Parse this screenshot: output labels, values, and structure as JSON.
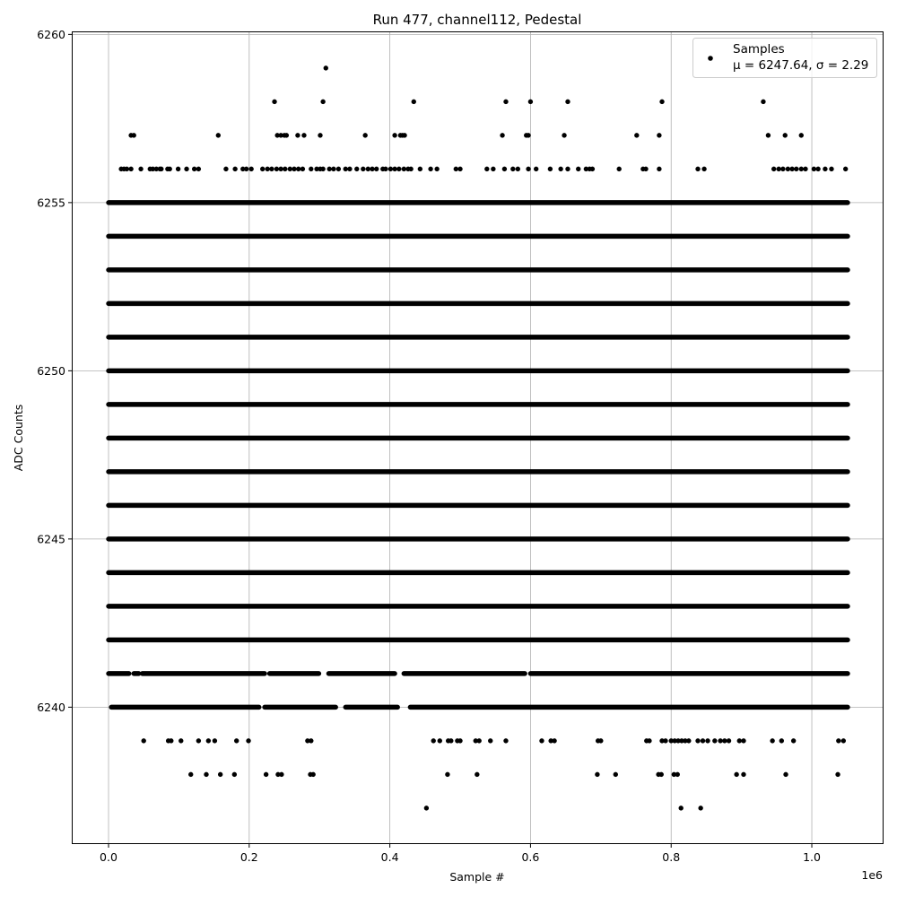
{
  "chart_data": {
    "type": "scatter",
    "title": "Run 477, channel112, Pedestal",
    "xlabel": "Sample #",
    "ylabel": "ADC Counts",
    "x_offset_label": "1e6",
    "x_unit_multiplier": 1000000,
    "xlim": [
      -0.0523,
      1.102
    ],
    "ylim": [
      6235.93,
      6260.09
    ],
    "xticks": [
      0.0,
      0.2,
      0.4,
      0.6,
      0.8,
      1.0
    ],
    "xtick_labels": [
      "0.0",
      "0.2",
      "0.4",
      "0.6",
      "0.8",
      "1.0"
    ],
    "yticks": [
      6240,
      6245,
      6250,
      6255,
      6260
    ],
    "ytick_labels": [
      "6240",
      "6245",
      "6250",
      "6255",
      "6260"
    ],
    "grid": true,
    "marker_color": "#000000",
    "grid_color": "#b0b0b0",
    "legend": {
      "placement": "top-right",
      "entries": [
        {
          "label": "Samples",
          "stats": "μ = 6247.64, σ = 2.29"
        }
      ]
    },
    "dense_rows": [
      {
        "y": 6255,
        "segments": [
          [
            0.0,
            1.051
          ]
        ]
      },
      {
        "y": 6254,
        "segments": [
          [
            0.0,
            1.051
          ]
        ]
      },
      {
        "y": 6253,
        "segments": [
          [
            0.0,
            1.051
          ]
        ]
      },
      {
        "y": 6252,
        "segments": [
          [
            0.0,
            1.051
          ]
        ]
      },
      {
        "y": 6251,
        "segments": [
          [
            0.0,
            1.051
          ]
        ]
      },
      {
        "y": 6250,
        "segments": [
          [
            0.0,
            1.051
          ]
        ]
      },
      {
        "y": 6249,
        "segments": [
          [
            0.0,
            1.051
          ]
        ]
      },
      {
        "y": 6248,
        "segments": [
          [
            0.0,
            1.051
          ]
        ]
      },
      {
        "y": 6247,
        "segments": [
          [
            0.0,
            1.051
          ]
        ]
      },
      {
        "y": 6246,
        "segments": [
          [
            0.0,
            1.051
          ]
        ]
      },
      {
        "y": 6245,
        "segments": [
          [
            0.0,
            1.051
          ]
        ]
      },
      {
        "y": 6244,
        "segments": [
          [
            0.0,
            1.051
          ]
        ]
      },
      {
        "y": 6243,
        "segments": [
          [
            0.0,
            1.051
          ]
        ]
      },
      {
        "y": 6242,
        "segments": [
          [
            0.0,
            1.051
          ]
        ]
      },
      {
        "y": 6241,
        "segments": [
          [
            0.0,
            0.029
          ],
          [
            0.036,
            0.043
          ],
          [
            0.048,
            0.222
          ],
          [
            0.229,
            0.299
          ],
          [
            0.313,
            0.407
          ],
          [
            0.42,
            0.592
          ],
          [
            0.6,
            1.051
          ]
        ]
      },
      {
        "y": 6240,
        "segments": [
          [
            0.004,
            0.214
          ],
          [
            0.222,
            0.323
          ],
          [
            0.337,
            0.411
          ],
          [
            0.429,
            1.051
          ]
        ]
      }
    ],
    "sparse_points": [
      {
        "y": 6259,
        "x": [
          0.309
        ]
      },
      {
        "y": 6258,
        "x": [
          0.236,
          0.305,
          0.434,
          0.565,
          0.6,
          0.653,
          0.787,
          0.931
        ]
      },
      {
        "y": 6257,
        "x": [
          0.032,
          0.036,
          0.156,
          0.24,
          0.245,
          0.25,
          0.253,
          0.269,
          0.278,
          0.301,
          0.365,
          0.407,
          0.415,
          0.418,
          0.421,
          0.56,
          0.594,
          0.597,
          0.648,
          0.751,
          0.783,
          0.938,
          0.962,
          0.985
        ]
      },
      {
        "y": 6256,
        "x": [
          0.018,
          0.022,
          0.026,
          0.032,
          0.046,
          0.059,
          0.063,
          0.068,
          0.073,
          0.075,
          0.084,
          0.087,
          0.099,
          0.111,
          0.122,
          0.128,
          0.167,
          0.18,
          0.191,
          0.196,
          0.203,
          0.219,
          0.226,
          0.232,
          0.239,
          0.245,
          0.251,
          0.258,
          0.264,
          0.27,
          0.276,
          0.288,
          0.296,
          0.301,
          0.305,
          0.314,
          0.32,
          0.327,
          0.337,
          0.343,
          0.353,
          0.362,
          0.369,
          0.375,
          0.381,
          0.39,
          0.394,
          0.401,
          0.407,
          0.413,
          0.42,
          0.426,
          0.43,
          0.443,
          0.458,
          0.467,
          0.494,
          0.5,
          0.538,
          0.547,
          0.563,
          0.575,
          0.582,
          0.597,
          0.608,
          0.628,
          0.643,
          0.653,
          0.668,
          0.679,
          0.684,
          0.688,
          0.726,
          0.76,
          0.764,
          0.783,
          0.838,
          0.847,
          0.946,
          0.953,
          0.959,
          0.966,
          0.972,
          0.978,
          0.985,
          0.991,
          1.003,
          1.009,
          1.019,
          1.028,
          1.048
        ]
      },
      {
        "y": 6239,
        "x": [
          0.05,
          0.085,
          0.089,
          0.103,
          0.128,
          0.142,
          0.151,
          0.182,
          0.199,
          0.283,
          0.288,
          0.462,
          0.471,
          0.483,
          0.487,
          0.496,
          0.5,
          0.522,
          0.527,
          0.543,
          0.565,
          0.616,
          0.629,
          0.634,
          0.696,
          0.7,
          0.765,
          0.769,
          0.787,
          0.792,
          0.8,
          0.805,
          0.81,
          0.815,
          0.82,
          0.825,
          0.838,
          0.845,
          0.852,
          0.862,
          0.87,
          0.876,
          0.882,
          0.897,
          0.903,
          0.944,
          0.957,
          0.974,
          1.038,
          1.045
        ]
      },
      {
        "y": 6238,
        "x": [
          0.117,
          0.139,
          0.159,
          0.179,
          0.224,
          0.241,
          0.246,
          0.287,
          0.291,
          0.482,
          0.524,
          0.695,
          0.721,
          0.782,
          0.786,
          0.804,
          0.809,
          0.893,
          0.903,
          0.963,
          1.037
        ]
      },
      {
        "y": 6237,
        "x": [
          0.452,
          0.814,
          0.842
        ]
      }
    ]
  }
}
